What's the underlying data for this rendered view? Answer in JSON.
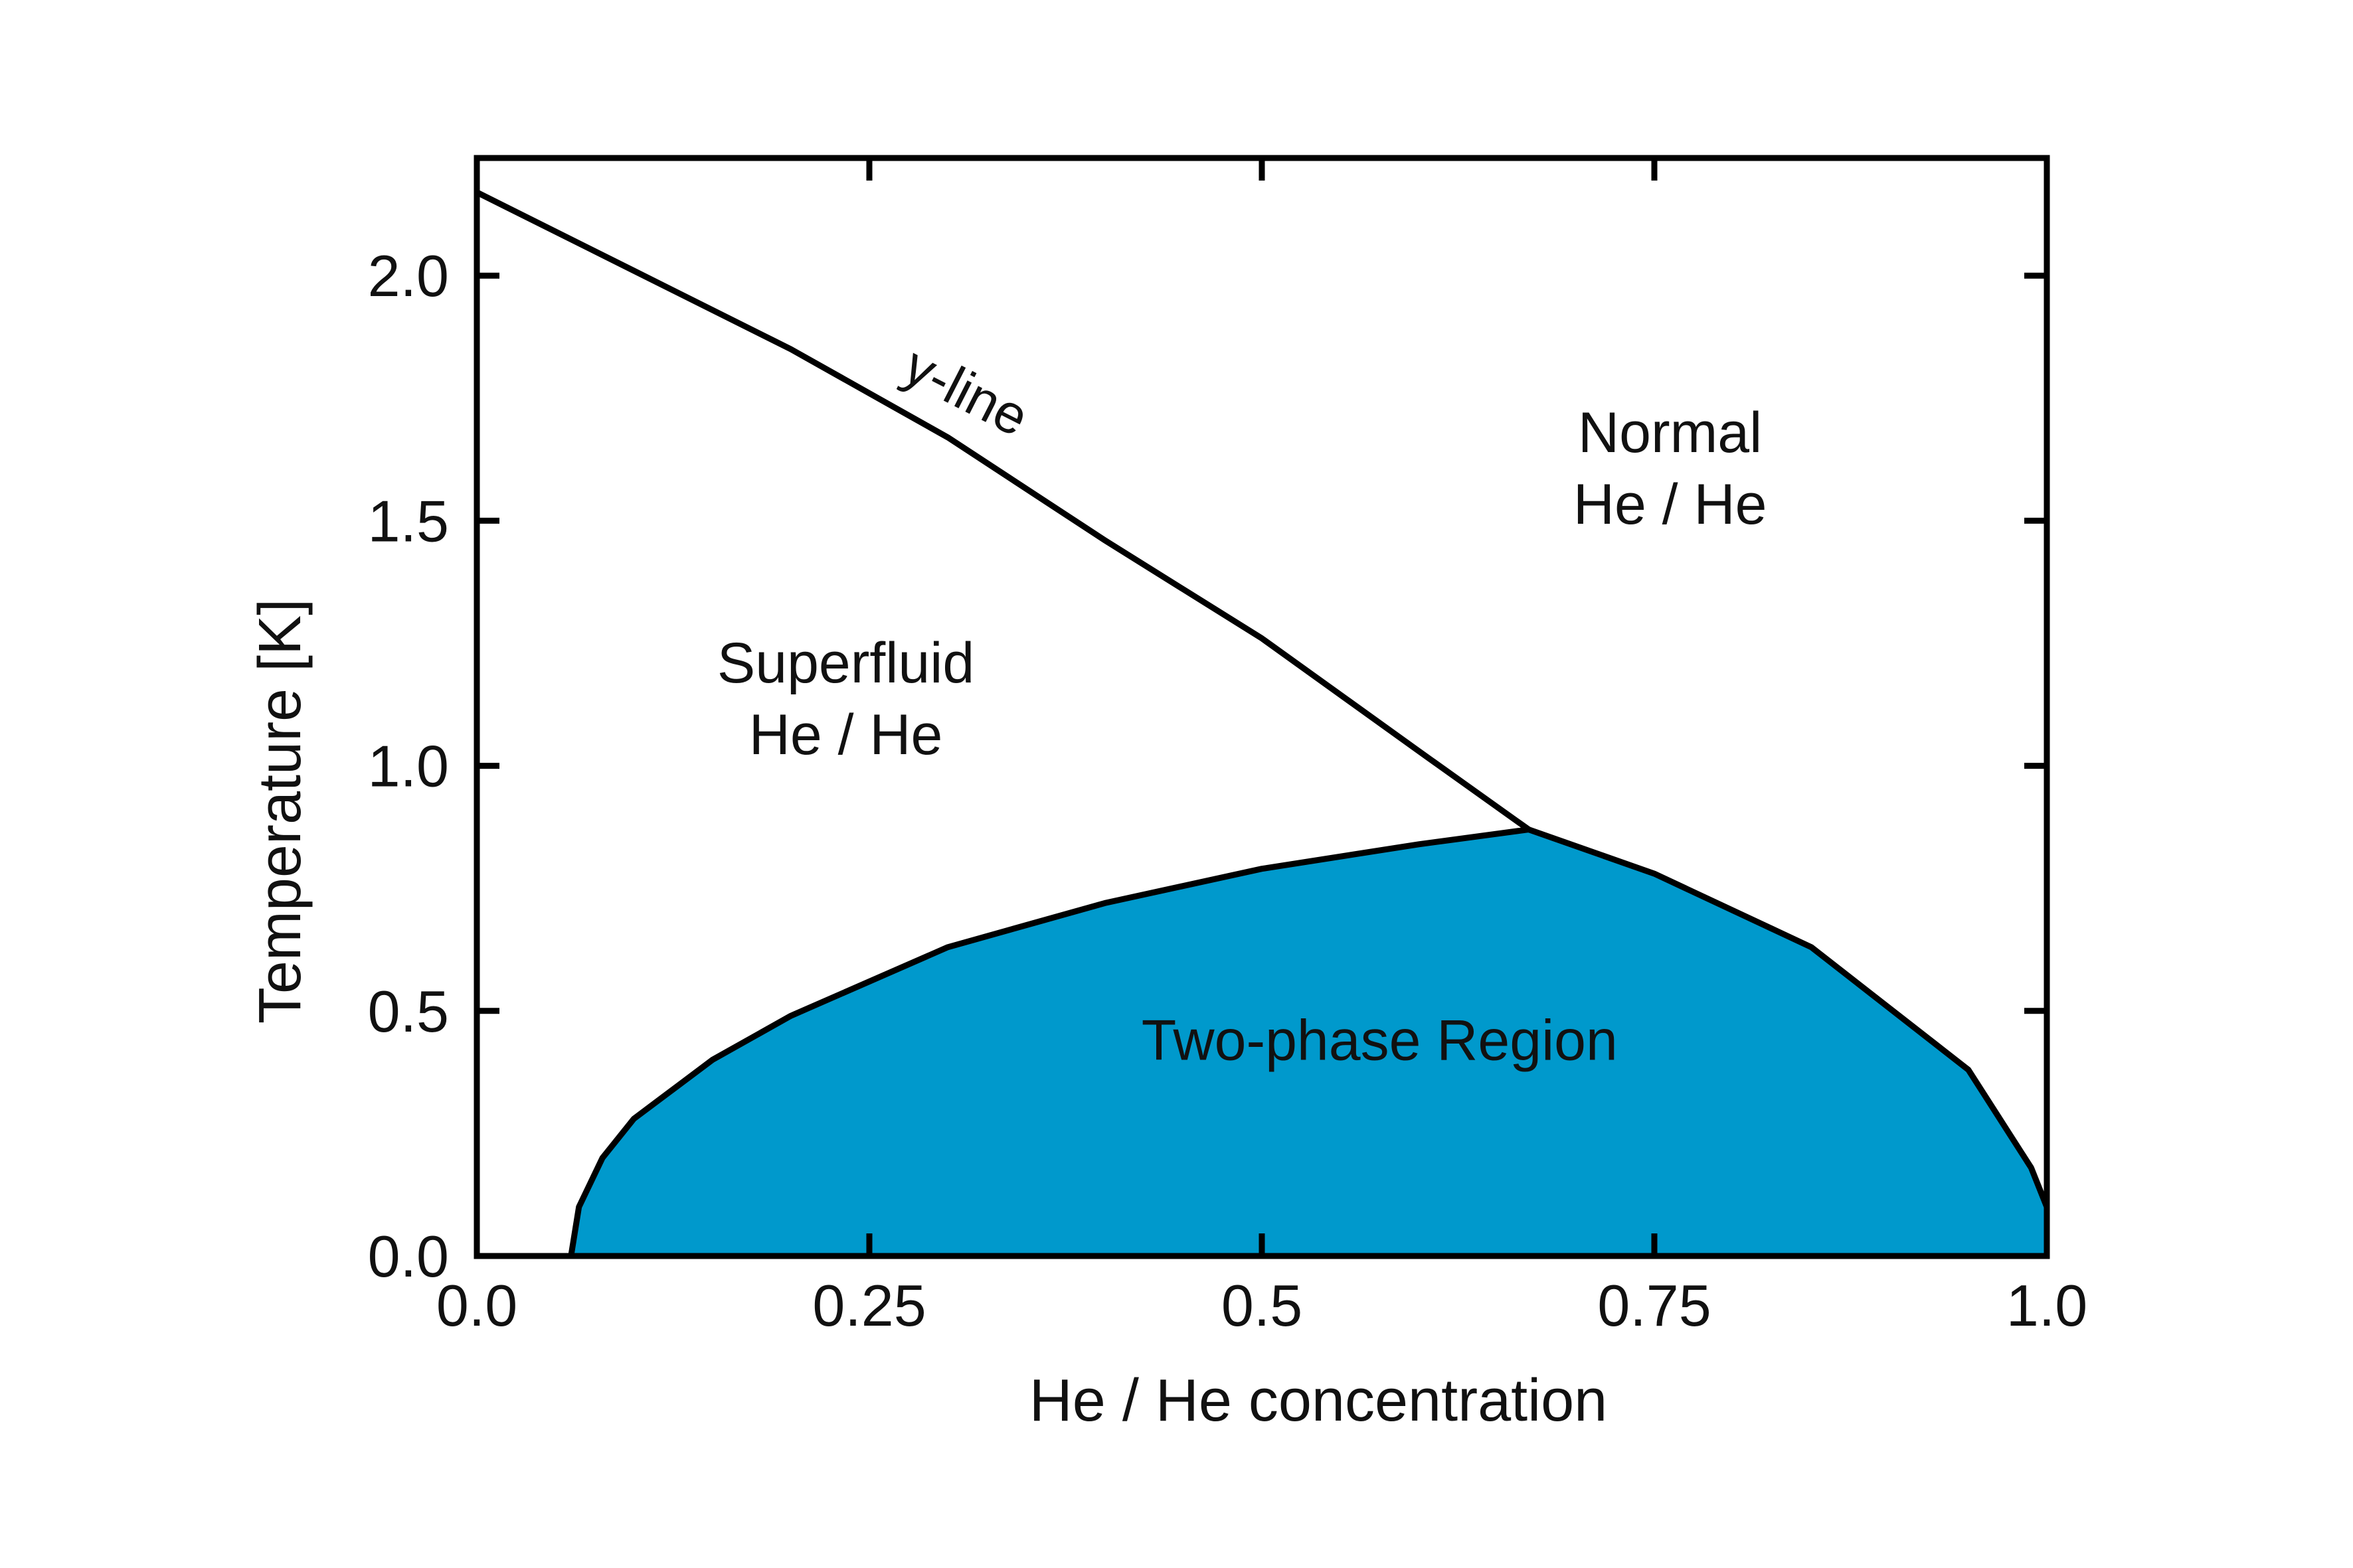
{
  "chart_data": {
    "type": "area",
    "xlabel": "He / He concentration",
    "ylabel": "Temperature [K]",
    "xlim": [
      0.0,
      1.0
    ],
    "ylim": [
      0.0,
      2.24
    ],
    "x_ticks": [
      {
        "value": 0.0,
        "label": "0.0"
      },
      {
        "value": 0.25,
        "label": "0.25"
      },
      {
        "value": 0.5,
        "label": "0.5"
      },
      {
        "value": 0.75,
        "label": "0.75"
      },
      {
        "value": 1.0,
        "label": "1.0"
      }
    ],
    "y_ticks": [
      {
        "value": 0.0,
        "label": "0.0"
      },
      {
        "value": 0.5,
        "label": "0.5"
      },
      {
        "value": 1.0,
        "label": "1.0"
      },
      {
        "value": 1.5,
        "label": "1.5"
      },
      {
        "value": 2.0,
        "label": "2.0"
      }
    ],
    "grid": false,
    "fill_color": "#0099cc",
    "line_color": "#000000",
    "lambda_line": {
      "label": "y-line",
      "x": [
        0.0,
        0.1,
        0.2,
        0.3,
        0.4,
        0.5,
        0.6,
        0.67
      ],
      "y": [
        2.17,
        2.01,
        1.85,
        1.67,
        1.46,
        1.26,
        1.03,
        0.87
      ]
    },
    "two_phase_boundary": {
      "x": [
        0.06,
        0.065,
        0.08,
        0.1,
        0.15,
        0.2,
        0.3,
        0.4,
        0.5,
        0.6,
        0.67,
        0.75,
        0.85,
        0.95,
        0.99,
        1.0
      ],
      "y": [
        0.0,
        0.1,
        0.2,
        0.28,
        0.4,
        0.49,
        0.63,
        0.72,
        0.79,
        0.84,
        0.87,
        0.78,
        0.63,
        0.38,
        0.18,
        0.1
      ]
    },
    "zero_segment": {
      "x": [
        0.0,
        0.06
      ],
      "y": [
        0.0,
        0.0
      ]
    },
    "regions": [
      {
        "name": "superfluid",
        "lines": [
          "Superfluid",
          "He / He"
        ],
        "x": 0.235,
        "y": 1.17
      },
      {
        "name": "normal",
        "lines": [
          "Normal",
          "He / He"
        ],
        "x": 0.76,
        "y": 1.64
      },
      {
        "name": "two-phase",
        "lines": [
          "Two-phase Region"
        ],
        "x": 0.575,
        "y": 0.4
      }
    ]
  }
}
